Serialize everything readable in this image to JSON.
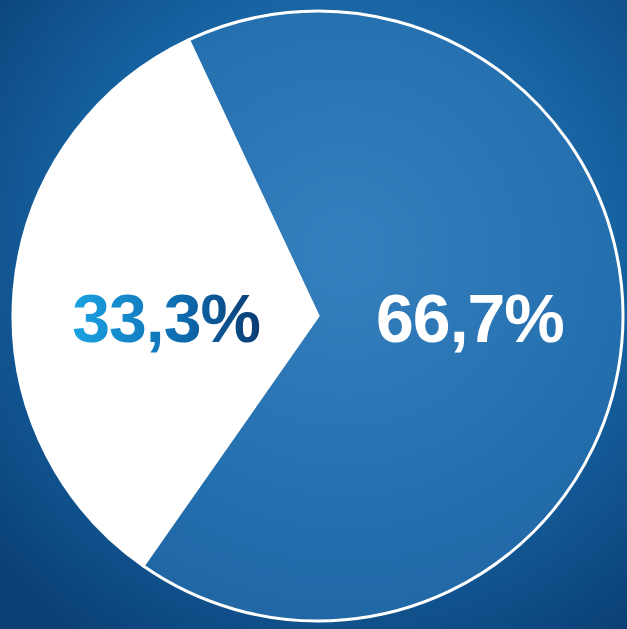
{
  "chart_data": {
    "type": "pie",
    "values": [
      33.3,
      66.7
    ],
    "value_labels": [
      "33,3%",
      "66,7%"
    ],
    "colors": [
      "#ffffff",
      "#2f7ab9"
    ],
    "data_labels": true
  }
}
